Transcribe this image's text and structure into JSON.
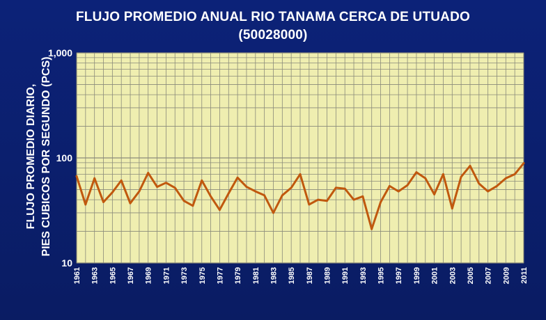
{
  "title_line1": "FLUJO PROMEDIO ANUAL RIO TANAMA CERCA DE UTUADO",
  "title_line2": "(50028000)",
  "ylabel_line1": "FLUJO PROMEDIO DIARIO,",
  "ylabel_line2": "PIES CUBICOS POR SEGUNDO (PCS)",
  "colors": {
    "background": "#0b1f6b",
    "plot_area": "#efeeb0",
    "grid": "#8a8a7a",
    "series": "#c0580e",
    "text": "#ffffff"
  },
  "chart_data": {
    "type": "line",
    "title": "FLUJO PROMEDIO ANUAL RIO TANAMA CERCA DE UTUADO (50028000)",
    "xlabel": "",
    "ylabel": "FLUJO PROMEDIO DIARIO, PIES CUBICOS POR SEGUNDO (PCS)",
    "yscale": "log",
    "ylim": [
      10,
      1000
    ],
    "yticks": [
      10,
      100,
      1000
    ],
    "ytick_labels": [
      "10",
      "100",
      "1,000"
    ],
    "xlim": [
      1961,
      2011
    ],
    "xtick_labels": [
      "1961",
      "1963",
      "1965",
      "1967",
      "1969",
      "1971",
      "1973",
      "1975",
      "1977",
      "1979",
      "1981",
      "1983",
      "1985",
      "1987",
      "1989",
      "1991",
      "1993",
      "1995",
      "1997",
      "1999",
      "2001",
      "2003",
      "2005",
      "2007",
      "2009",
      "2011"
    ],
    "grid": true,
    "x": [
      1961,
      1962,
      1963,
      1964,
      1965,
      1966,
      1967,
      1968,
      1969,
      1970,
      1971,
      1972,
      1973,
      1974,
      1975,
      1976,
      1977,
      1978,
      1979,
      1980,
      1981,
      1982,
      1983,
      1984,
      1985,
      1986,
      1987,
      1988,
      1989,
      1990,
      1991,
      1992,
      1993,
      1994,
      1995,
      1996,
      1997,
      1998,
      1999,
      2000,
      2001,
      2002,
      2003,
      2004,
      2005,
      2006,
      2007,
      2008,
      2009,
      2010,
      2011
    ],
    "series": [
      {
        "values": [
          67,
          36,
          64,
          38,
          47,
          61,
          37,
          48,
          72,
          53,
          58,
          52,
          39,
          35,
          61,
          43,
          32,
          46,
          65,
          53,
          48,
          44,
          30,
          44,
          52,
          70,
          36,
          40,
          39,
          52,
          51,
          40,
          43,
          21,
          38,
          54,
          48,
          55,
          73,
          64,
          45,
          70,
          33,
          66,
          84,
          57,
          48,
          54,
          64,
          70,
          89
        ]
      }
    ]
  }
}
